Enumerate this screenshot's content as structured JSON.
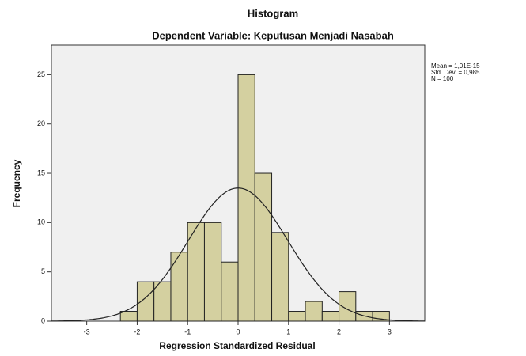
{
  "chart_data": {
    "type": "histogram",
    "title": "Histogram",
    "subtitle": "Dependent Variable: Keputusan Menjadi Nasabah",
    "x_label": "Regression Standardized Residual",
    "y_label": "Frequency",
    "bins": [
      -2.333,
      -2,
      -1.667,
      -1.333,
      -1,
      -0.667,
      -0.333,
      0,
      0.333,
      0.667,
      1,
      1.333,
      1.667,
      2,
      2.333,
      2.667,
      3
    ],
    "values": [
      1,
      4,
      4,
      7,
      10,
      10,
      6,
      25,
      15,
      9,
      1,
      2,
      1,
      3,
      1,
      1
    ],
    "color": "#d4d0a0",
    "xlim": [
      -3.7,
      3.7
    ],
    "ylim": [
      0,
      28
    ],
    "xticks": [
      -3,
      -2,
      -1,
      0,
      1,
      2,
      3
    ],
    "yticks": [
      0,
      5,
      10,
      15,
      20,
      25
    ],
    "normal_curve": {
      "mean": 1.01e-15,
      "std": 0.985,
      "n": 100
    },
    "annotations": [
      "Mean = 1,01E-15",
      "Std. Dev. = 0,985",
      "N = 100"
    ]
  }
}
